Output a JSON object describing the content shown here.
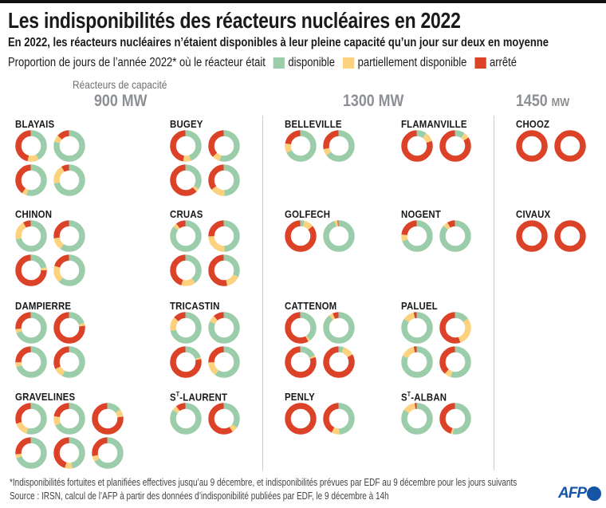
{
  "title": "Les indisponibilités des réacteurs nucléaires en 2022",
  "subtitle": "En 2022, les réacteurs nucléaires n’étaient disponibles à leur pleine capacité qu’un jour sur deux en moyenne",
  "legend": {
    "intro": "Proportion de jours de l’année 2022* où le réacteur était",
    "items": [
      {
        "label": "disponible",
        "color": "#9ccdaa"
      },
      {
        "label": "partiellement disponible",
        "color": "#fdd27f"
      },
      {
        "label": "arrêté",
        "color": "#dc4227"
      }
    ]
  },
  "capacity": {
    "intro": "Réacteurs de capacité",
    "c900": "900 MW",
    "c1300": "1300 MW",
    "c1450_num": "1450",
    "c1450_unit": "MW"
  },
  "chart_data": {
    "type": "pie",
    "variant": "donut",
    "series": [
      "disponible",
      "partiellement disponible",
      "arrêté"
    ],
    "colors": [
      "#9ccdaa",
      "#fdd27f",
      "#dc4227"
    ],
    "plants": [
      {
        "name": "BLAYAIS",
        "capacity": "900 MW",
        "reactors": [
          [
            0.42,
            0.12,
            0.46
          ],
          [
            0.8,
            0.07,
            0.13
          ],
          [
            0.55,
            0.05,
            0.4
          ],
          [
            0.72,
            0.2,
            0.08
          ]
        ]
      },
      {
        "name": "BUGEY",
        "capacity": "900 MW",
        "reactors": [
          [
            0.45,
            0.08,
            0.47
          ],
          [
            0.55,
            0.08,
            0.37
          ],
          [
            0.35,
            0.03,
            0.62
          ],
          [
            0.5,
            0.15,
            0.35
          ]
        ]
      },
      {
        "name": "CHINON",
        "capacity": "900 MW",
        "reactors": [
          [
            0.72,
            0.2,
            0.08
          ],
          [
            0.6,
            0.13,
            0.27
          ],
          [
            0.22,
            0.03,
            0.75
          ],
          [
            0.62,
            0.18,
            0.2
          ]
        ]
      },
      {
        "name": "CRUAS",
        "capacity": "900 MW",
        "reactors": [
          [
            0.86,
            0.04,
            0.1
          ],
          [
            0.5,
            0.25,
            0.25
          ],
          [
            0.4,
            0.15,
            0.45
          ],
          [
            0.32,
            0.15,
            0.53
          ]
        ]
      },
      {
        "name": "DAMPIERRE",
        "capacity": "900 MW",
        "reactors": [
          [
            0.7,
            0.04,
            0.26
          ],
          [
            0.2,
            0.03,
            0.77
          ],
          [
            0.7,
            0.05,
            0.25
          ],
          [
            0.58,
            0.1,
            0.32
          ]
        ]
      },
      {
        "name": "TRICASTIN",
        "capacity": "900 MW",
        "reactors": [
          [
            0.72,
            0.15,
            0.13
          ],
          [
            0.82,
            0.07,
            0.11
          ],
          [
            0.2,
            0.02,
            0.78
          ],
          [
            0.6,
            0.15,
            0.25
          ]
        ]
      },
      {
        "name": "GRAVELINES",
        "capacity": "900 MW",
        "reactors": [
          [
            0.55,
            0.15,
            0.3
          ],
          [
            0.68,
            0.1,
            0.22
          ],
          [
            0.15,
            0.08,
            0.77
          ],
          [
            0.7,
            0.04,
            0.26
          ],
          [
            0.47,
            0.08,
            0.45
          ],
          [
            0.66,
            0.06,
            0.28
          ]
        ]
      },
      {
        "name": "S",
        "name_sup": "T",
        "name_rest": "-LAURENT",
        "capacity": "900 MW",
        "reactors": [
          [
            0.85,
            0.05,
            0.1
          ],
          [
            0.35,
            0.06,
            0.59
          ]
        ]
      },
      {
        "name": "BELLEVILLE",
        "capacity": "1300 MW",
        "reactors": [
          [
            0.68,
            0.1,
            0.22
          ],
          [
            0.65,
            0.07,
            0.28
          ]
        ]
      },
      {
        "name": "FLAMANVILLE",
        "capacity": "1300 MW",
        "reactors": [
          [
            0.1,
            0.1,
            0.8
          ],
          [
            0.1,
            0.06,
            0.84
          ]
        ]
      },
      {
        "name": "GOLFECH",
        "capacity": "1300 MW",
        "reactors": [
          [
            0.04,
            0.1,
            0.86
          ],
          [
            0.96,
            0.03,
            0.01
          ]
        ]
      },
      {
        "name": "NOGENT",
        "capacity": "1300 MW",
        "reactors": [
          [
            0.7,
            0.07,
            0.23
          ],
          [
            0.87,
            0.05,
            0.08
          ]
        ]
      },
      {
        "name": "CATTENOM",
        "capacity": "1300 MW",
        "reactors": [
          [
            0.4,
            0.02,
            0.58
          ],
          [
            0.9,
            0.04,
            0.06
          ],
          [
            0.18,
            0.02,
            0.8
          ],
          [
            0.05,
            0.12,
            0.83
          ]
        ]
      },
      {
        "name": "PALUEL",
        "capacity": "1300 MW",
        "reactors": [
          [
            0.85,
            0.12,
            0.03
          ],
          [
            0.15,
            0.3,
            0.55
          ],
          [
            0.82,
            0.15,
            0.03
          ],
          [
            0.55,
            0.07,
            0.38
          ]
        ]
      },
      {
        "name": "PENLY",
        "capacity": "1300 MW",
        "reactors": [
          [
            0,
            0,
            1
          ],
          [
            0.5,
            0.08,
            0.42
          ]
        ]
      },
      {
        "name": "S",
        "name_sup": "T",
        "name_rest": "-ALBAN",
        "capacity": "1300 MW",
        "reactors": [
          [
            0.85,
            0.13,
            0.02
          ],
          [
            0.53,
            0.02,
            0.45
          ]
        ]
      },
      {
        "name": "CHOOZ",
        "capacity": "1450 MW",
        "reactors": [
          [
            0,
            0,
            1
          ],
          [
            0,
            0,
            1
          ]
        ]
      },
      {
        "name": "CIVAUX",
        "capacity": "1450 MW",
        "reactors": [
          [
            0,
            0,
            1
          ],
          [
            0,
            0,
            1
          ]
        ]
      }
    ]
  },
  "footer": {
    "note": "*Indisponibilités fortuites et planifiées effectives jusqu’au 9 décembre, et indisponibilités prévues par EDF au 9 décembre pour les jours suivants",
    "source": "Source : IRSN, calcul de l’AFP à partir des données d’indisponibilité publiées par EDF, le 9 décembre à 14h",
    "logo": "AFP"
  }
}
